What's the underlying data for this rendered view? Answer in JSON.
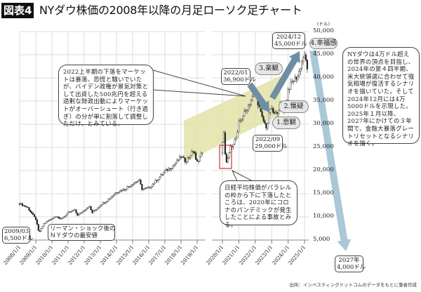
{
  "header": {
    "badge": "図表4",
    "title": "NYダウ株価の2008年以降の月足ローソク足チャート"
  },
  "chart_data": {
    "type": "candlestick",
    "title": "NYダウ株価の2008年以降の月足ローソク足チャート",
    "ylabel": "(ドル)",
    "ylim": [
      5000,
      50000
    ],
    "y_ticks": [
      "50,000",
      "45,000",
      "40,000",
      "35,000",
      "30,000",
      "25,000",
      "20,000",
      "15,000",
      "10,000",
      "5,000"
    ],
    "y_tick_values": [
      50000,
      45000,
      40000,
      35000,
      30000,
      25000,
      20000,
      15000,
      10000,
      5000
    ],
    "x_ticks": [
      "2008/1/1",
      "2009/1/1",
      "2010/1/1",
      "2011/1/1",
      "2012/1/1",
      "2013/1/1",
      "2014/1/1",
      "2015/1/1",
      "2016/1/1",
      "2017/1/1",
      "2018/1/1",
      "2019/1/1",
      "2020/1/1",
      "2021/1/1",
      "2022/1/1",
      "2023/1/1",
      "2024/1/1",
      "2025/1/1"
    ],
    "x_tick_years": [
      2008,
      2009,
      2010,
      2011,
      2012,
      2013,
      2014,
      2015,
      2016,
      2017,
      2018,
      2019,
      2020,
      2021,
      2022,
      2023,
      2024,
      2025
    ],
    "approx_path": [
      [
        2008.0,
        12900
      ],
      [
        2008.5,
        12000
      ],
      [
        2008.8,
        10500
      ],
      [
        2009.0,
        9500
      ],
      [
        2009.2,
        6500
      ],
      [
        2009.5,
        8500
      ],
      [
        2010.0,
        9700
      ],
      [
        2010.3,
        10300
      ],
      [
        2010.5,
        9400
      ],
      [
        2011.0,
        10800
      ],
      [
        2011.4,
        11500
      ],
      [
        2011.6,
        10300
      ],
      [
        2012.0,
        11500
      ],
      [
        2012.3,
        12400
      ],
      [
        2012.5,
        10900
      ],
      [
        2013.0,
        12600
      ],
      [
        2013.5,
        13800
      ],
      [
        2014.0,
        15400
      ],
      [
        2014.5,
        16000
      ],
      [
        2015.0,
        17200
      ],
      [
        2015.4,
        17900
      ],
      [
        2015.6,
        15900
      ],
      [
        2016.0,
        16200
      ],
      [
        2016.5,
        18000
      ],
      [
        2017.0,
        19800
      ],
      [
        2017.5,
        21000
      ],
      [
        2018.0,
        23000
      ],
      [
        2018.3,
        22000
      ],
      [
        2018.8,
        24500
      ],
      [
        2018.95,
        21500
      ],
      [
        2019.4,
        24500
      ],
      [
        2020.0,
        26500
      ],
      [
        2020.1,
        28300
      ],
      [
        2020.2,
        20800
      ],
      [
        2020.5,
        25000
      ],
      [
        2020.9,
        27500
      ],
      [
        2021.0,
        30300
      ],
      [
        2021.5,
        33500
      ],
      [
        2022.0,
        36900
      ],
      [
        2022.4,
        31500
      ],
      [
        2022.7,
        29200
      ],
      [
        2022.9,
        33500
      ],
      [
        2023.2,
        32000
      ],
      [
        2023.6,
        34500
      ],
      [
        2023.8,
        32800
      ],
      [
        2024.0,
        37500
      ],
      [
        2024.3,
        39400
      ],
      [
        2024.6,
        40500
      ],
      [
        2024.95,
        45000
      ],
      [
        2025.1,
        43500
      ],
      [
        2025.2,
        41500
      ]
    ],
    "forecast_arrow": {
      "from": "2024/12 45,000",
      "to": "2027 4,000"
    }
  },
  "annotations": {
    "low_2009": "2009/03\n6,500ドル",
    "lehman": "リーマン・ショック後の\nＮＹダウの最安値",
    "high_2022": "2022/01\n36,900ドル",
    "low_2022": "2022/09\n29,000ドル",
    "high_2024": "2024/12\n45,000ドル",
    "forecast_2027": "2027年\n4,000ドル",
    "phase1": "1.悲観",
    "phase2": "2.懐疑",
    "phase3": "3.楽観",
    "phase4": "4.幸福感",
    "bubble_2022": "2022上半期の下落をマーケットは暴落、恐慌と騒いでいたが、バイデン政権が景気対策として出資した500兆円を超える過剰な財政出動によりマーケットがオーバーシュート（行き過ぎ）の分が単に割落して調整しただけ、とみている。",
    "bubble_nikkei": "日経平均株価がパラレルの枠から下に下落したところは、2020年にコロナのパンデミックが発生したことによる事故とみる。",
    "bubble_scenario": "NYダウは4万ドル超えの世界の頂点を目指し、2024年の第４四半期、米大統領選に合わせて強気相場が復活するシナリオを描いていた。そして2024年12月には4万5000ドルを示現した。2025年１月以降、2027年にかけての３年間で、金融大暴落グレートリセットとなるシナリオを描く。"
  },
  "source": "出所：インベスティングドットコムのデータをもとに筆者作成",
  "colors": {
    "band": "#e3e2a8",
    "arrow_dark": "#6f8ea3",
    "arrow_light": "#a9c8d8",
    "red_box": "#c0392b",
    "grid": "#dcdcdc"
  }
}
